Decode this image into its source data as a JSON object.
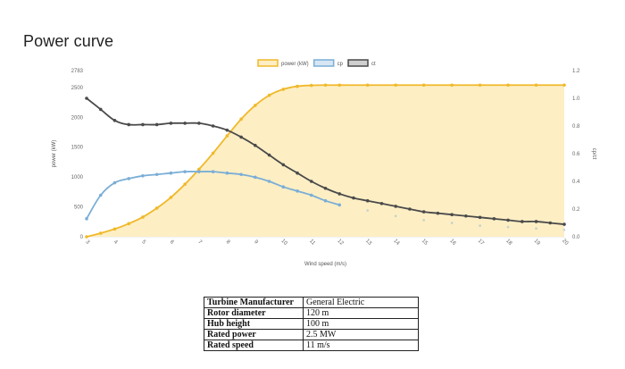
{
  "page": {
    "title": "Power curve"
  },
  "chart_data": {
    "type": "line",
    "xlabel": "Wind speed (m/s)",
    "ylabel_left": "power (kW)",
    "ylabel_right": "cp/ct",
    "x_ticks": [
      3,
      4,
      5,
      6,
      7,
      8,
      9,
      10,
      11,
      12,
      13,
      14,
      15,
      16,
      17,
      18,
      19,
      20
    ],
    "xlim": [
      3,
      20
    ],
    "y_left_ticks": [
      0,
      500,
      1000,
      1500,
      2000,
      2500,
      2783
    ],
    "y_left_lim": [
      0,
      2783
    ],
    "y_right_ticks": [
      0,
      0.2,
      0.4,
      0.6,
      0.8,
      1.0,
      1.2
    ],
    "y_right_lim": [
      0,
      1.2
    ],
    "grid": false,
    "legend": "top-center",
    "series": [
      {
        "name": "power (kW)",
        "axis": "left",
        "fill": true,
        "color": "#f0b92a",
        "fill_color": "#fdeec4",
        "x": [
          3,
          3.5,
          4,
          4.5,
          5,
          5.5,
          6,
          6.5,
          7,
          7.5,
          8,
          8.5,
          9,
          9.5,
          10,
          10.5,
          11,
          11.5,
          12,
          13,
          14,
          15,
          16,
          17,
          18,
          19,
          20
        ],
        "y": [
          0,
          60,
          130,
          220,
          330,
          480,
          660,
          880,
          1130,
          1400,
          1690,
          1970,
          2200,
          2370,
          2470,
          2520,
          2535,
          2540,
          2540,
          2540,
          2540,
          2540,
          2540,
          2540,
          2540,
          2540,
          2540
        ]
      },
      {
        "name": "cp",
        "axis": "right",
        "fill": false,
        "color": "#7aaed6",
        "x": [
          3,
          3.5,
          4,
          4.5,
          5,
          5.5,
          6,
          6.5,
          7,
          7.5,
          8,
          8.5,
          9,
          9.5,
          10,
          10.5,
          11,
          11.5,
          12,
          13,
          14,
          15,
          16,
          17,
          18,
          19,
          20
        ],
        "y": [
          0.13,
          0.3,
          0.39,
          0.42,
          0.44,
          0.45,
          0.46,
          0.47,
          0.47,
          0.47,
          0.46,
          0.45,
          0.43,
          0.4,
          0.36,
          0.33,
          0.3,
          0.26,
          0.23,
          0.19,
          0.15,
          0.12,
          0.1,
          0.08,
          0.07,
          0.06,
          0.05
        ],
        "faded_from_x": 12.5
      },
      {
        "name": "ct",
        "axis": "right",
        "fill": false,
        "color": "#4a4a4a",
        "x": [
          3,
          3.5,
          4,
          4.5,
          5,
          5.5,
          6,
          6.5,
          7,
          7.5,
          8,
          8.5,
          9,
          9.5,
          10,
          10.5,
          11,
          11.5,
          12,
          12.5,
          13,
          13.5,
          14,
          14.5,
          15,
          15.5,
          16,
          16.5,
          17,
          17.5,
          18,
          18.5,
          19,
          19.5,
          20
        ],
        "y": [
          1.0,
          0.92,
          0.84,
          0.81,
          0.81,
          0.81,
          0.82,
          0.82,
          0.82,
          0.8,
          0.77,
          0.72,
          0.66,
          0.59,
          0.52,
          0.46,
          0.4,
          0.35,
          0.31,
          0.28,
          0.26,
          0.24,
          0.22,
          0.2,
          0.18,
          0.17,
          0.16,
          0.15,
          0.14,
          0.13,
          0.12,
          0.11,
          0.11,
          0.1,
          0.09
        ]
      }
    ]
  },
  "specs_table": {
    "rows": [
      {
        "label": "Turbine Manufacturer",
        "value": "General Electric"
      },
      {
        "label": "Rotor diameter",
        "value": "120 m"
      },
      {
        "label": "Hub height",
        "value": "100 m"
      },
      {
        "label": "Rated power",
        "value": "2.5 MW"
      },
      {
        "label": "Rated speed",
        "value": "11 m/s"
      }
    ]
  }
}
